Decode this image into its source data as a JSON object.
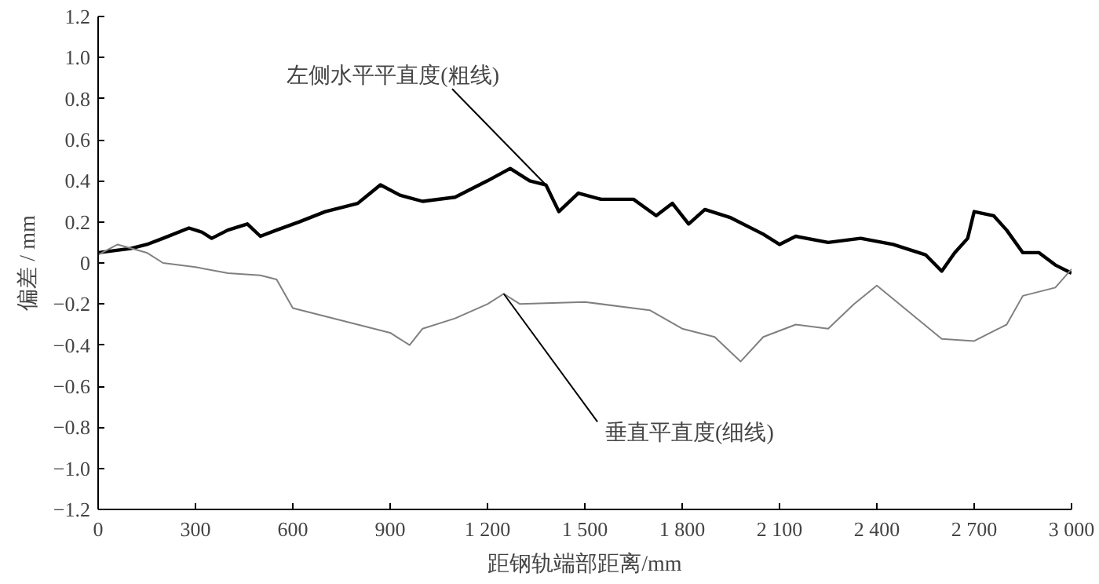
{
  "chart_data": {
    "type": "line",
    "xlabel": "距钢轨端部距离/mm",
    "ylabel": "偏差 / mm",
    "xlim": [
      0,
      3000
    ],
    "ylim": [
      -1.2,
      1.2
    ],
    "xticks": [
      0,
      300,
      600,
      900,
      {
        "value": 1200,
        "label": "1 200"
      },
      {
        "value": 1500,
        "label": "1 500"
      },
      {
        "value": 1800,
        "label": "1 800"
      },
      {
        "value": 2100,
        "label": "2 100"
      },
      {
        "value": 2400,
        "label": "2 400"
      },
      {
        "value": 2700,
        "label": "2 700"
      },
      {
        "value": 3000,
        "label": "3 000"
      }
    ],
    "yticks": [
      {
        "value": -1.2,
        "label": "−1.2"
      },
      {
        "value": -1.0,
        "label": "−1.0"
      },
      {
        "value": -0.8,
        "label": "−0.8"
      },
      {
        "value": -0.6,
        "label": "−0.6"
      },
      {
        "value": -0.4,
        "label": "−0.4"
      },
      {
        "value": -0.2,
        "label": "−0.2"
      },
      0,
      {
        "value": 0.2,
        "label": "0.2"
      },
      {
        "value": 0.4,
        "label": "0.4"
      },
      {
        "value": 0.6,
        "label": "0.6"
      },
      {
        "value": 0.8,
        "label": "0.8"
      },
      {
        "value": 1.0,
        "label": "1.0"
      },
      {
        "value": 1.2,
        "label": "1.2"
      }
    ],
    "grid": false,
    "series": [
      {
        "color": "#000000",
        "x": [
          0,
          100,
          150,
          200,
          280,
          320,
          350,
          400,
          460,
          500,
          550,
          620,
          700,
          800,
          870,
          930,
          1000,
          1100,
          1200,
          1270,
          1330,
          1380,
          1420,
          1480,
          1550,
          1650,
          1720,
          1770,
          1820,
          1870,
          1950,
          2050,
          2100,
          2150,
          2250,
          2350,
          2450,
          2550,
          2600,
          2640,
          2680,
          2700,
          2760,
          2800,
          2850,
          2900,
          2950,
          3000
        ],
        "values": [
          0.05,
          0.07,
          0.09,
          0.12,
          0.17,
          0.15,
          0.12,
          0.16,
          0.19,
          0.13,
          0.16,
          0.2,
          0.25,
          0.29,
          0.38,
          0.33,
          0.3,
          0.32,
          0.4,
          0.46,
          0.4,
          0.38,
          0.25,
          0.34,
          0.31,
          0.31,
          0.23,
          0.29,
          0.19,
          0.26,
          0.22,
          0.14,
          0.09,
          0.13,
          0.1,
          0.12,
          0.09,
          0.04,
          -0.04,
          0.05,
          0.12,
          0.25,
          0.23,
          0.16,
          0.05,
          0.05,
          -0.01,
          -0.05
        ]
      },
      {
        "color": "#808080",
        "x": [
          0,
          60,
          150,
          200,
          300,
          400,
          500,
          550,
          600,
          700,
          800,
          900,
          960,
          1000,
          1100,
          1200,
          1250,
          1300,
          1500,
          1700,
          1800,
          1900,
          1980,
          2050,
          2150,
          2250,
          2330,
          2400,
          2500,
          2600,
          2700,
          2800,
          2850,
          2950,
          3000
        ],
        "values": [
          0.04,
          0.09,
          0.05,
          0.0,
          -0.02,
          -0.05,
          -0.06,
          -0.08,
          -0.22,
          -0.26,
          -0.3,
          -0.34,
          -0.4,
          -0.32,
          -0.27,
          -0.2,
          -0.15,
          -0.2,
          -0.19,
          -0.23,
          -0.32,
          -0.36,
          -0.48,
          -0.36,
          -0.3,
          -0.32,
          -0.2,
          -0.11,
          -0.24,
          -0.37,
          -0.38,
          -0.3,
          -0.16,
          -0.12,
          -0.03
        ]
      }
    ],
    "annotations": [
      {
        "text": "左侧水平平直度(粗线)",
        "x": 1380,
        "y": 0.38
      },
      {
        "text": "垂直平直度(细线)",
        "x": 1250,
        "y": -0.15
      }
    ]
  }
}
